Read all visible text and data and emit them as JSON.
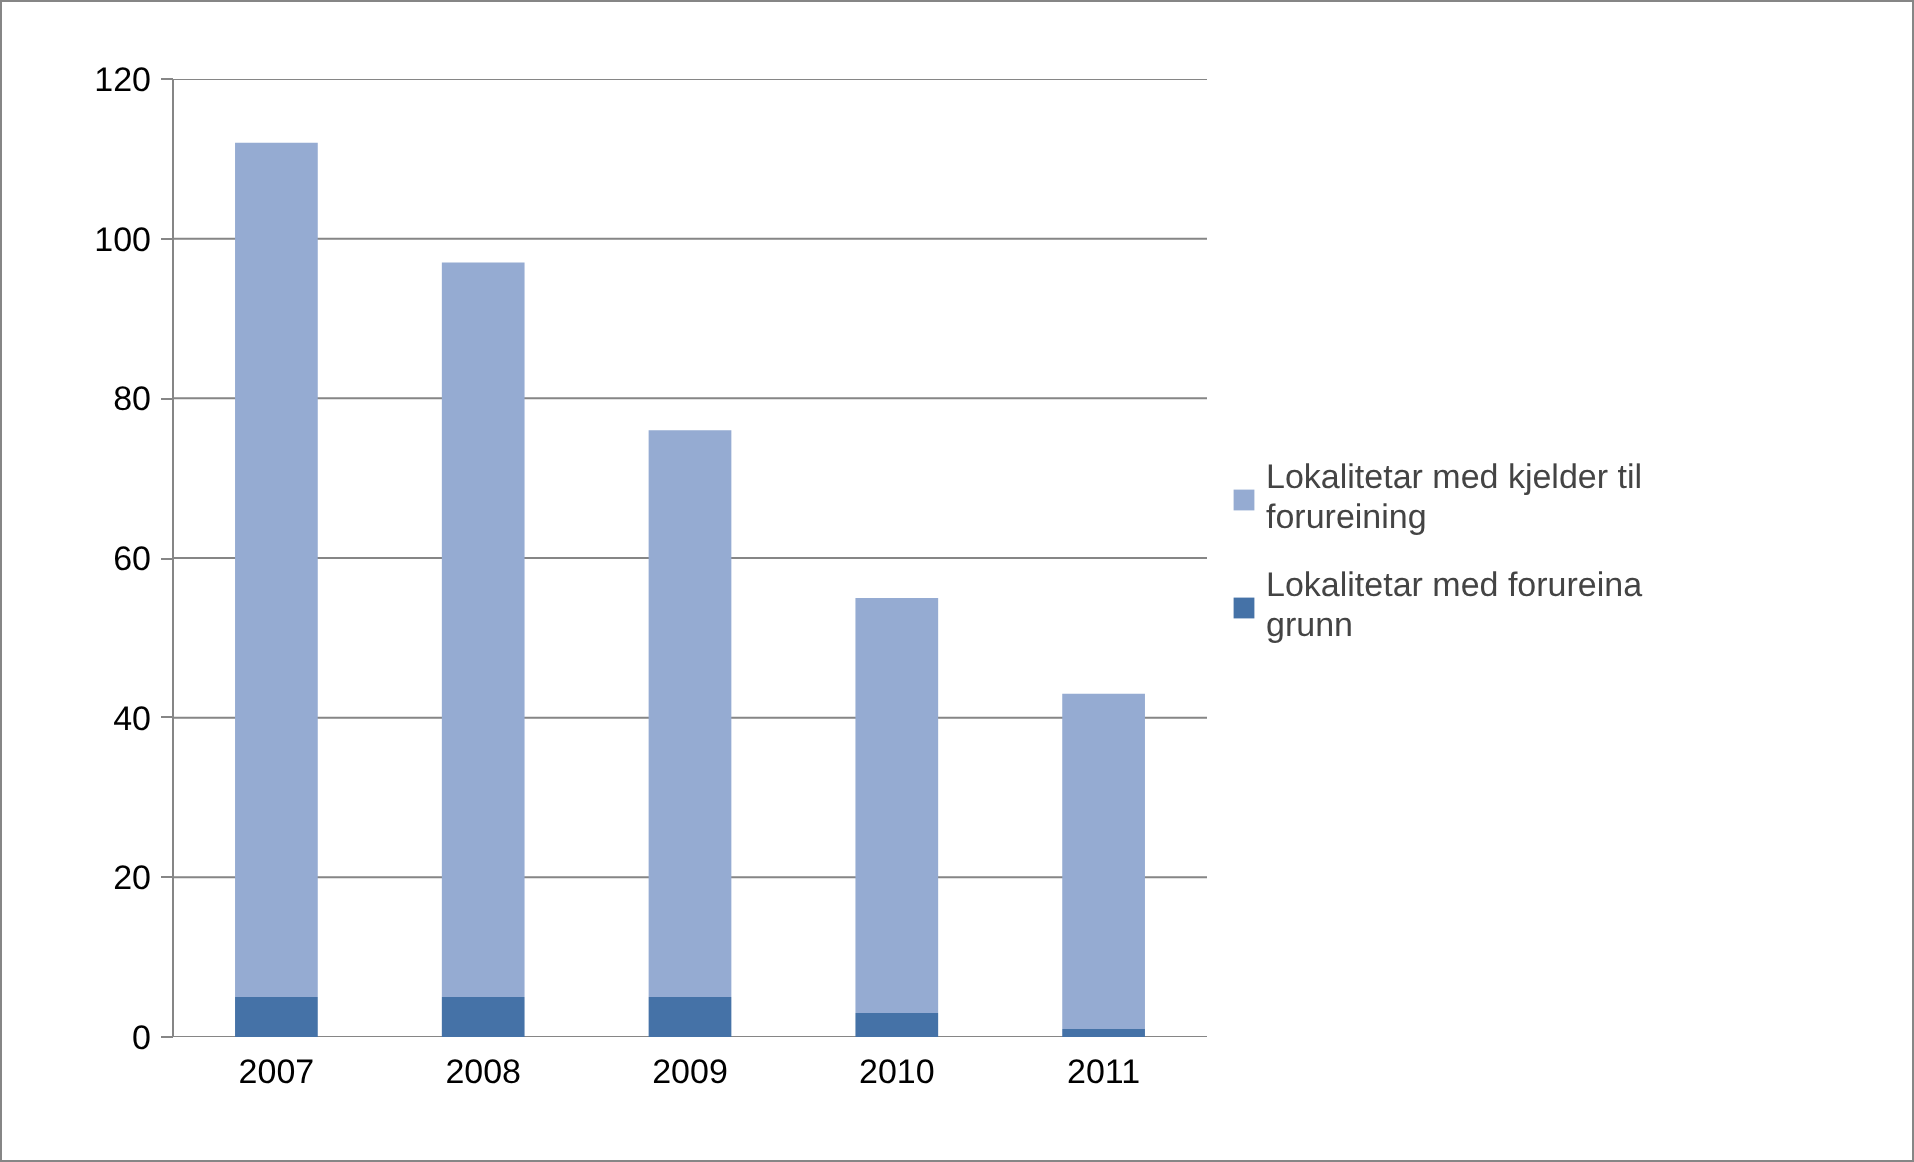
{
  "chart_data": {
    "type": "bar",
    "stacked": true,
    "categories": [
      "2007",
      "2008",
      "2009",
      "2010",
      "2011"
    ],
    "series": [
      {
        "name": "Lokalitetar med forureina grunn",
        "color": "#4572a7",
        "values": [
          5,
          5,
          5,
          3,
          1
        ]
      },
      {
        "name": "Lokalitetar med kjelder til forureining",
        "color": "#95abd2",
        "values": [
          107,
          92,
          71,
          52,
          42
        ]
      }
    ],
    "ylim": [
      0,
      120
    ],
    "yticks": [
      0,
      20,
      40,
      60,
      80,
      100,
      120
    ],
    "grid": "y",
    "legend": "right"
  }
}
